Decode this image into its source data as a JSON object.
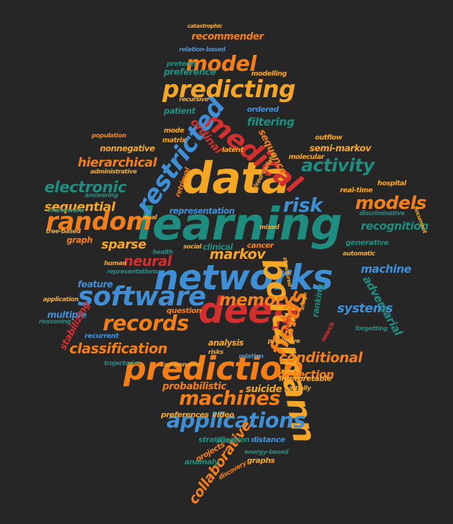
{
  "palette": {
    "background": "#262626",
    "orange": "#f57f17",
    "red": "#d32f2f",
    "blue": "#3f8fd6",
    "teal": "#1e8c7e",
    "yellow": "#f5a623"
  },
  "words": [
    {
      "text": "learning",
      "color": "#1e8c7e"
    },
    {
      "text": "data",
      "color": "#f5a623"
    },
    {
      "text": "networks",
      "color": "#3f8fd6"
    },
    {
      "text": "deep",
      "color": "#d32f2f"
    },
    {
      "text": "prediction",
      "color": "#f57f17"
    },
    {
      "text": "boltzmann",
      "color": "#f5a623"
    },
    {
      "text": "medical",
      "color": "#d32f2f"
    },
    {
      "text": "restricted",
      "color": "#3f8fd6"
    },
    {
      "text": "software",
      "color": "#3f8fd6"
    },
    {
      "text": "random",
      "color": "#f57f17"
    },
    {
      "text": "predicting",
      "color": "#f5a623"
    },
    {
      "text": "records",
      "color": "#f57f17"
    },
    {
      "text": "applications",
      "color": "#3f8fd6"
    },
    {
      "text": "machines",
      "color": "#f57f17"
    },
    {
      "text": "model",
      "color": "#f57f17"
    },
    {
      "text": "fields",
      "color": "#f57f17"
    },
    {
      "text": "models",
      "color": "#f57f17"
    },
    {
      "text": "risk",
      "color": "#3f8fd6"
    },
    {
      "text": "activity",
      "color": "#1e8c7e"
    },
    {
      "text": "memory",
      "color": "#f57f17"
    },
    {
      "text": "classification",
      "color": "#f57f17"
    },
    {
      "text": "electronic",
      "color": "#1e8c7e"
    },
    {
      "text": "collaborative",
      "color": "#f57f17"
    },
    {
      "text": "markov",
      "color": "#f5a623"
    },
    {
      "text": "neural",
      "color": "#d32f2f"
    },
    {
      "text": "conditional",
      "color": "#f57f17"
    },
    {
      "text": "sparse",
      "color": "#f5a623"
    },
    {
      "text": "sequential",
      "color": "#f5a623"
    },
    {
      "text": "hierarchical",
      "color": "#f57f17"
    },
    {
      "text": "recognition",
      "color": "#1e8c7e"
    },
    {
      "text": "systems",
      "color": "#3f8fd6"
    },
    {
      "text": "machine",
      "color": "#3f8fd6"
    },
    {
      "text": "adversarial",
      "color": "#1e8c7e"
    },
    {
      "text": "filtering",
      "color": "#1e8c7e"
    },
    {
      "text": "ordinal",
      "color": "#d32f2f"
    },
    {
      "text": "sequence",
      "color": "#f57f17"
    },
    {
      "text": "detection",
      "color": "#f57f17"
    },
    {
      "text": "probabilistic",
      "color": "#f57f17"
    },
    {
      "text": "recommender",
      "color": "#f57f17"
    },
    {
      "text": "preference",
      "color": "#1e8c7e"
    },
    {
      "text": "representation",
      "color": "#3f8fd6"
    },
    {
      "text": "semi-markov",
      "color": "#f5a623"
    },
    {
      "text": "nonnegative",
      "color": "#f5a623"
    },
    {
      "text": "multiple",
      "color": "#3f8fd6"
    },
    {
      "text": "feature",
      "color": "#3f8fd6"
    },
    {
      "text": "stabilizing",
      "color": "#d32f2f"
    },
    {
      "text": "recurrent",
      "color": "#3f8fd6"
    },
    {
      "text": "graph",
      "color": "#f57f17"
    },
    {
      "text": "analysis",
      "color": "#f5a623"
    },
    {
      "text": "ranking",
      "color": "#1e8c7e"
    },
    {
      "text": "suicide",
      "color": "#f5a623"
    },
    {
      "text": "clinical",
      "color": "#1e8c7e"
    },
    {
      "text": "patient",
      "color": "#1e8c7e"
    },
    {
      "text": "video",
      "color": "#f5a623"
    },
    {
      "text": "preferences",
      "color": "#f5a623"
    },
    {
      "text": "stratification",
      "color": "#1e8c7e"
    },
    {
      "text": "distance",
      "color": "#3f8fd6"
    },
    {
      "text": "projects",
      "color": "#f57f17"
    },
    {
      "text": "anomaly",
      "color": "#1e8c7e"
    },
    {
      "text": "graphs",
      "color": "#f5a623"
    },
    {
      "text": "generative",
      "color": "#1e8c7e"
    },
    {
      "text": "cancer",
      "color": "#f57f17"
    },
    {
      "text": "interpretable",
      "color": "#f5a623"
    },
    {
      "text": "question",
      "color": "#f57f17"
    },
    {
      "text": "mode",
      "color": "#f5a623"
    },
    {
      "text": "matrix",
      "color": "#f5a623"
    },
    {
      "text": "ordered",
      "color": "#3f8fd6"
    },
    {
      "text": "recursive",
      "color": "#f5a623"
    },
    {
      "text": "modelling",
      "color": "#f5a623"
    },
    {
      "text": "preterm",
      "color": "#1e8c7e"
    },
    {
      "text": "relation-based",
      "color": "#3f8fd6"
    },
    {
      "text": "catastrophic",
      "color": "#f5a623"
    },
    {
      "text": "latent",
      "color": "#f5a623"
    },
    {
      "text": "molecular",
      "color": "#f5a623"
    },
    {
      "text": "mixed-variate",
      "color": "#f5a623"
    },
    {
      "text": "retrieval",
      "color": "#f57f17"
    },
    {
      "text": "real-time",
      "color": "#f5a623"
    },
    {
      "text": "hospital",
      "color": "#f5a623"
    },
    {
      "text": "outflow",
      "color": "#f5a623"
    },
    {
      "text": "discriminative",
      "color": "#1e8c7e"
    },
    {
      "text": "administrative",
      "color": "#f5a623"
    },
    {
      "text": "population",
      "color": "#f57f17"
    },
    {
      "text": "answering",
      "color": "#1e8c7e"
    },
    {
      "text": "framework",
      "color": "#1e8c7e"
    },
    {
      "text": "tree-based",
      "color": "#f5a623"
    },
    {
      "text": "dual",
      "color": "#f5a623"
    },
    {
      "text": "health",
      "color": "#1e8c7e"
    },
    {
      "text": "social",
      "color": "#f5a623"
    },
    {
      "text": "mixed",
      "color": "#f5a623"
    },
    {
      "text": "automatic",
      "color": "#f5a623"
    },
    {
      "text": "human",
      "color": "#f5a623"
    },
    {
      "text": "representations",
      "color": "#1e8c7e"
    },
    {
      "text": "application",
      "color": "#f5a623"
    },
    {
      "text": "reasoning",
      "color": "#1e8c7e"
    },
    {
      "text": "trajectories",
      "color": "#1e8c7e"
    },
    {
      "text": "components",
      "color": "#f5a623"
    },
    {
      "text": "predictive",
      "color": "#f5a623"
    },
    {
      "text": "risks",
      "color": "#f5a623"
    },
    {
      "text": "relation",
      "color": "#3f8fd6"
    },
    {
      "text": "energy-based",
      "color": "#1e8c7e"
    },
    {
      "text": "discovery",
      "color": "#f57f17"
    },
    {
      "text": "metric",
      "color": "#1e8c7e"
    },
    {
      "text": "partially",
      "color": "#f5a623"
    },
    {
      "text": "forgetting",
      "color": "#1e8c7e"
    },
    {
      "text": "search",
      "color": "#d32f2f"
    },
    {
      "text": "birth",
      "color": "#d32f2f"
    },
    {
      "text": "image",
      "color": "#f5a623"
    },
    {
      "text": "structured",
      "color": "#f5a623"
    },
    {
      "text": "document",
      "color": "#f5a623"
    }
  ]
}
